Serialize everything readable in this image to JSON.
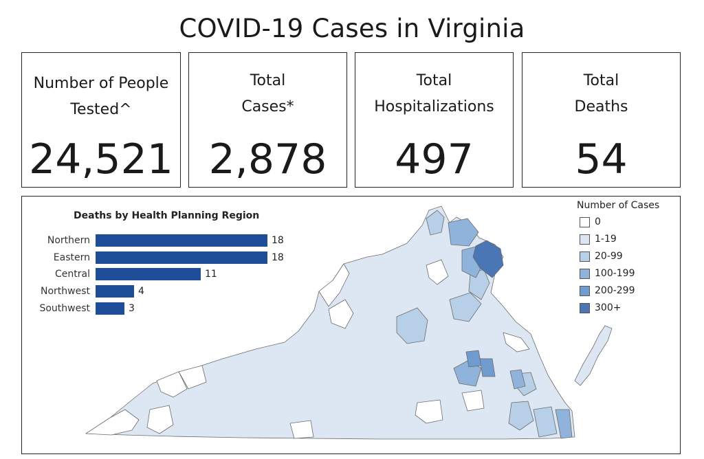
{
  "title": "COVID-19 Cases in Virginia",
  "stats": [
    {
      "label_line1": "Number of People",
      "label_line2": "Tested^",
      "value": "24,521"
    },
    {
      "label_line1": "Total",
      "label_line2": "Cases*",
      "value": "2,878"
    },
    {
      "label_line1": "Total",
      "label_line2": "Hospitalizations",
      "value": "497"
    },
    {
      "label_line1": "Total",
      "label_line2": "Deaths",
      "value": "54"
    }
  ],
  "chart_data": {
    "type": "bar",
    "orientation": "horizontal",
    "title": "Deaths by Health Planning Region",
    "categories": [
      "Northern",
      "Eastern",
      "Central",
      "Northwest",
      "Southwest"
    ],
    "values": [
      18,
      18,
      11,
      4,
      3
    ],
    "value_labels": [
      "18",
      "18",
      "11",
      "4",
      "3"
    ],
    "bar_color": "#1f4e99"
  },
  "map": {
    "legend_title": "Number of Cases",
    "legend": [
      {
        "label": "0",
        "color": "#ffffff"
      },
      {
        "label": "1-19",
        "color": "#dde7f3"
      },
      {
        "label": "20-99",
        "color": "#b7cfe7"
      },
      {
        "label": "100-199",
        "color": "#8fb3da"
      },
      {
        "label": "200-299",
        "color": "#6f9bcf"
      },
      {
        "label": "300+",
        "color": "#4a76b6"
      }
    ]
  }
}
